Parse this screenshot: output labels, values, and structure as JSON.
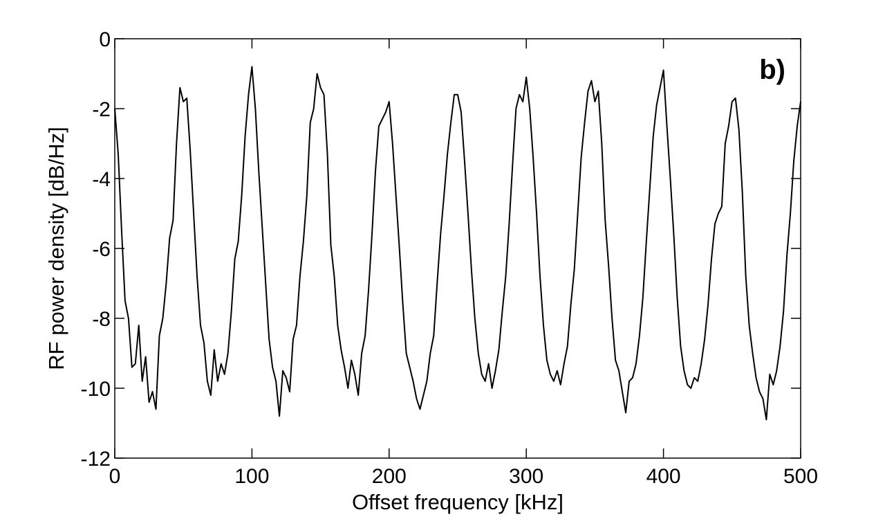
{
  "chart_data": {
    "type": "line",
    "xlabel": "Offset frequency [kHz]",
    "ylabel": "RF power density [dB/Hz]",
    "annotation": "b)",
    "color": "#000000",
    "xlim": [
      0,
      500
    ],
    "ylim": [
      -12,
      0
    ],
    "xticks": [
      0,
      100,
      200,
      300,
      400,
      500
    ],
    "yticks": [
      -12,
      -10,
      -8,
      -6,
      -4,
      -2,
      0
    ],
    "x": [
      0,
      2.5,
      5,
      7.5,
      10,
      12.5,
      15,
      17.5,
      20,
      22.5,
      25,
      27.5,
      30,
      32.5,
      35,
      37.5,
      40,
      42.5,
      45,
      47.5,
      50,
      52.5,
      55,
      57.5,
      60,
      62.5,
      65,
      67.5,
      70,
      72.5,
      75,
      77.5,
      80,
      82.5,
      85,
      87.5,
      90,
      92.5,
      95,
      97.5,
      100,
      102.5,
      105,
      107.5,
      110,
      112.5,
      115,
      117.5,
      120,
      122.5,
      125,
      127.5,
      130,
      132.5,
      135,
      137.5,
      140,
      142.5,
      145,
      147.5,
      150,
      152.5,
      155,
      157.5,
      160,
      162.5,
      165,
      167.5,
      170,
      172.5,
      175,
      177.5,
      180,
      182.5,
      185,
      187.5,
      190,
      192.5,
      195,
      197.5,
      200,
      202.5,
      205,
      207.5,
      210,
      212.5,
      215,
      217.5,
      220,
      222.5,
      225,
      227.5,
      230,
      232.5,
      235,
      237.5,
      240,
      242.5,
      245,
      247.5,
      250,
      252.5,
      255,
      257.5,
      260,
      262.5,
      265,
      267.5,
      270,
      272.5,
      275,
      277.5,
      280,
      282.5,
      285,
      287.5,
      290,
      292.5,
      295,
      297.5,
      300,
      302.5,
      305,
      307.5,
      310,
      312.5,
      315,
      317.5,
      320,
      322.5,
      325,
      327.5,
      330,
      332.5,
      335,
      337.5,
      340,
      342.5,
      345,
      347.5,
      350,
      352.5,
      355,
      357.5,
      360,
      362.5,
      365,
      367.5,
      370,
      372.5,
      375,
      377.5,
      380,
      382.5,
      385,
      387.5,
      390,
      392.5,
      395,
      397.5,
      400,
      402.5,
      405,
      407.5,
      410,
      412.5,
      415,
      417.5,
      420,
      422.5,
      425,
      427.5,
      430,
      432.5,
      435,
      437.5,
      440,
      442.5,
      445,
      447.5,
      450,
      452.5,
      455,
      457.5,
      460,
      462.5,
      465,
      467.5,
      470,
      472.5,
      475,
      477.5,
      480,
      482.5,
      485,
      487.5,
      490,
      492.5,
      495,
      497.5,
      500
    ],
    "values": [
      -2.0,
      -3.3,
      -5.5,
      -7.5,
      -8.0,
      -9.4,
      -9.3,
      -8.2,
      -9.8,
      -9.1,
      -10.4,
      -10.1,
      -10.6,
      -8.5,
      -8.0,
      -7.0,
      -5.7,
      -5.2,
      -3.0,
      -1.4,
      -1.8,
      -1.7,
      -3.2,
      -5.0,
      -6.8,
      -8.2,
      -8.7,
      -9.8,
      -10.2,
      -8.9,
      -9.8,
      -9.3,
      -9.6,
      -9.0,
      -7.8,
      -6.3,
      -5.8,
      -4.5,
      -2.8,
      -1.6,
      -0.8,
      -2.0,
      -3.8,
      -5.4,
      -7.0,
      -8.6,
      -9.4,
      -9.8,
      -10.8,
      -9.5,
      -9.7,
      -10.1,
      -8.6,
      -8.2,
      -6.8,
      -5.8,
      -4.5,
      -2.4,
      -2.0,
      -1.0,
      -1.4,
      -1.6,
      -3.3,
      -5.9,
      -6.8,
      -8.2,
      -8.9,
      -9.4,
      -10.0,
      -9.2,
      -9.6,
      -10.2,
      -9.0,
      -8.5,
      -7.2,
      -5.6,
      -3.8,
      -2.5,
      -2.3,
      -2.1,
      -1.8,
      -3.0,
      -4.5,
      -6.0,
      -7.6,
      -9.0,
      -9.4,
      -9.8,
      -10.3,
      -10.6,
      -10.2,
      -9.8,
      -9.0,
      -8.5,
      -7.0,
      -5.6,
      -4.5,
      -3.3,
      -2.4,
      -1.6,
      -1.6,
      -2.1,
      -3.5,
      -5.0,
      -6.6,
      -8.0,
      -9.0,
      -9.6,
      -9.8,
      -9.3,
      -10.0,
      -9.5,
      -8.9,
      -7.8,
      -6.8,
      -5.3,
      -3.6,
      -2.0,
      -1.6,
      -1.8,
      -1.1,
      -2.0,
      -3.4,
      -5.0,
      -6.8,
      -8.2,
      -9.2,
      -9.6,
      -9.8,
      -9.5,
      -9.9,
      -9.3,
      -8.8,
      -7.6,
      -6.6,
      -5.0,
      -3.4,
      -2.4,
      -1.5,
      -1.2,
      -1.8,
      -1.5,
      -3.0,
      -5.2,
      -6.5,
      -8.0,
      -9.2,
      -9.5,
      -10.1,
      -10.7,
      -9.8,
      -9.7,
      -9.3,
      -8.5,
      -7.4,
      -5.8,
      -4.3,
      -2.8,
      -1.9,
      -1.4,
      -0.9,
      -2.5,
      -4.0,
      -5.6,
      -7.4,
      -8.8,
      -9.5,
      -9.9,
      -10.0,
      -9.7,
      -9.8,
      -9.3,
      -8.6,
      -7.6,
      -6.3,
      -5.3,
      -5.0,
      -4.8,
      -3.0,
      -2.5,
      -1.8,
      -1.7,
      -2.6,
      -4.4,
      -6.8,
      -8.2,
      -9.0,
      -9.7,
      -10.1,
      -10.3,
      -10.9,
      -9.6,
      -9.9,
      -9.5,
      -8.8,
      -7.8,
      -6.2,
      -5.0,
      -3.5,
      -2.5,
      -1.8
    ]
  }
}
